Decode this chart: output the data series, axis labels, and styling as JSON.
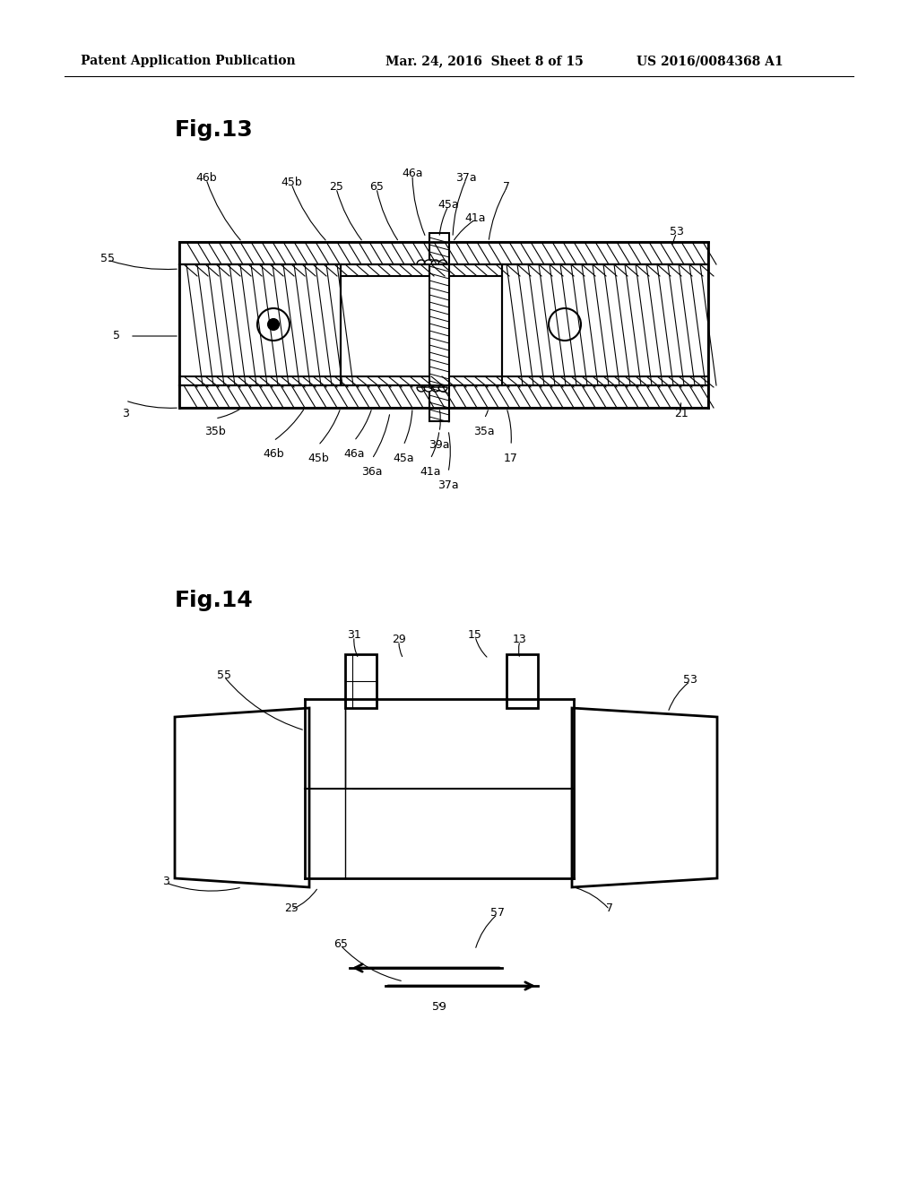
{
  "bg_color": "#ffffff",
  "header_left": "Patent Application Publication",
  "header_mid": "Mar. 24, 2016  Sheet 8 of 15",
  "header_right": "US 2016/0084368 A1",
  "fig13_title": "Fig.13",
  "fig14_title": "Fig.14"
}
